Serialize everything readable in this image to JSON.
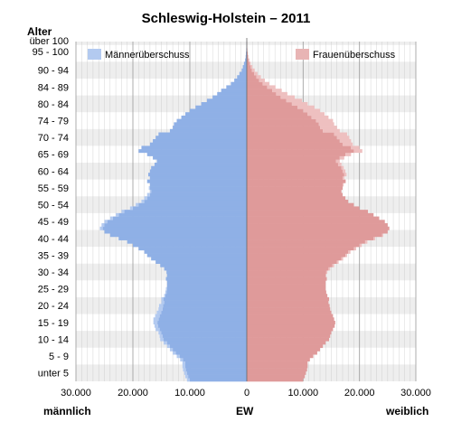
{
  "chart_data": {
    "type": "bar",
    "orientation": "horizontal-population-pyramid",
    "title": "Schleswig-Holstein – 2011",
    "y_axis_title": "Alter",
    "x_label_left": "männlich",
    "x_label_center": "EW",
    "x_label_right": "weiblich",
    "xlim": [
      -30000,
      30000
    ],
    "x_ticks": [
      {
        "value": -30000,
        "label": "30.000"
      },
      {
        "value": -20000,
        "label": "20.000"
      },
      {
        "value": -10000,
        "label": "10.000"
      },
      {
        "value": 0,
        "label": "0"
      },
      {
        "value": 10000,
        "label": "10.000"
      },
      {
        "value": 20000,
        "label": "20.000"
      },
      {
        "value": 30000,
        "label": "30.000"
      }
    ],
    "age_group_labels": [
      "unter 5",
      "5 - 9",
      "10 - 14",
      "15 - 19",
      "20 - 24",
      "25 - 29",
      "30 - 34",
      "35 - 39",
      "40 - 44",
      "45 - 49",
      "50 - 54",
      "55 - 59",
      "60 - 64",
      "65 - 69",
      "70 - 74",
      "74 - 79",
      "80 - 84",
      "84 - 89",
      "90 - 94",
      "95 - 100",
      "über 100"
    ],
    "legend": [
      {
        "name": "Männerüberschuss",
        "color": "#b3caf0",
        "position": "top-left"
      },
      {
        "name": "Frauenüberschuss",
        "color": "#e8b4b4",
        "position": "top-right"
      }
    ],
    "colors": {
      "male": "#8fb0e6",
      "female": "#df9a9a",
      "male_surplus": "#b3caf0",
      "female_surplus": "#eec0c0",
      "grid": "#bbbbbb",
      "band": "#eeeeee"
    },
    "series": [
      {
        "name": "Männer",
        "age_start": 0,
        "values": [
          10500,
          10800,
          11000,
          11200,
          11300,
          11300,
          11700,
          12300,
          13000,
          13500,
          14000,
          14600,
          15200,
          15300,
          15500,
          16000,
          16200,
          16400,
          16400,
          16100,
          15800,
          15500,
          15400,
          15000,
          15000,
          14500,
          14300,
          14200,
          14000,
          14000,
          14200,
          14000,
          14100,
          14500,
          15200,
          16000,
          16800,
          17500,
          18000,
          19000,
          20000,
          21000,
          22500,
          24000,
          25000,
          25800,
          25500,
          25000,
          24000,
          23000,
          22000,
          20500,
          19500,
          18500,
          18000,
          17500,
          17000,
          17200,
          17000,
          17500,
          17000,
          17300,
          17000,
          16800,
          16200,
          15800,
          16500,
          17500,
          19000,
          18500,
          17000,
          16500,
          16000,
          15500,
          13500,
          13000,
          12800,
          12300,
          11500,
          10800,
          10000,
          9000,
          8000,
          7000,
          6000,
          5200,
          4500,
          3600,
          2800,
          2200,
          1700,
          1300,
          900,
          700,
          500,
          300,
          200,
          150,
          100,
          50,
          30
        ]
      },
      {
        "name": "Frauen",
        "age_start": 0,
        "values": [
          10000,
          10300,
          10500,
          10700,
          10800,
          10800,
          11200,
          11800,
          12500,
          13000,
          13500,
          14000,
          14600,
          14800,
          15000,
          15300,
          15600,
          15700,
          15500,
          15300,
          15000,
          14800,
          14700,
          14500,
          14600,
          14300,
          14100,
          14000,
          14000,
          14000,
          14200,
          14100,
          14300,
          14800,
          15500,
          16300,
          17100,
          17800,
          18400,
          19400,
          20400,
          21400,
          22800,
          24200,
          25000,
          25300,
          25000,
          24500,
          23500,
          22500,
          21500,
          20000,
          19000,
          18000,
          17500,
          17000,
          16800,
          17000,
          17200,
          17600,
          17300,
          17700,
          17500,
          17200,
          16800,
          16500,
          17300,
          18500,
          20500,
          20000,
          18800,
          18500,
          18200,
          17800,
          16500,
          16000,
          15500,
          15300,
          14500,
          13800,
          13000,
          12000,
          10800,
          9800,
          8500,
          7200,
          6200,
          5100,
          4000,
          3200,
          2500,
          1900,
          1400,
          1000,
          700,
          450,
          300,
          200,
          120,
          60,
          30
        ]
      }
    ]
  }
}
